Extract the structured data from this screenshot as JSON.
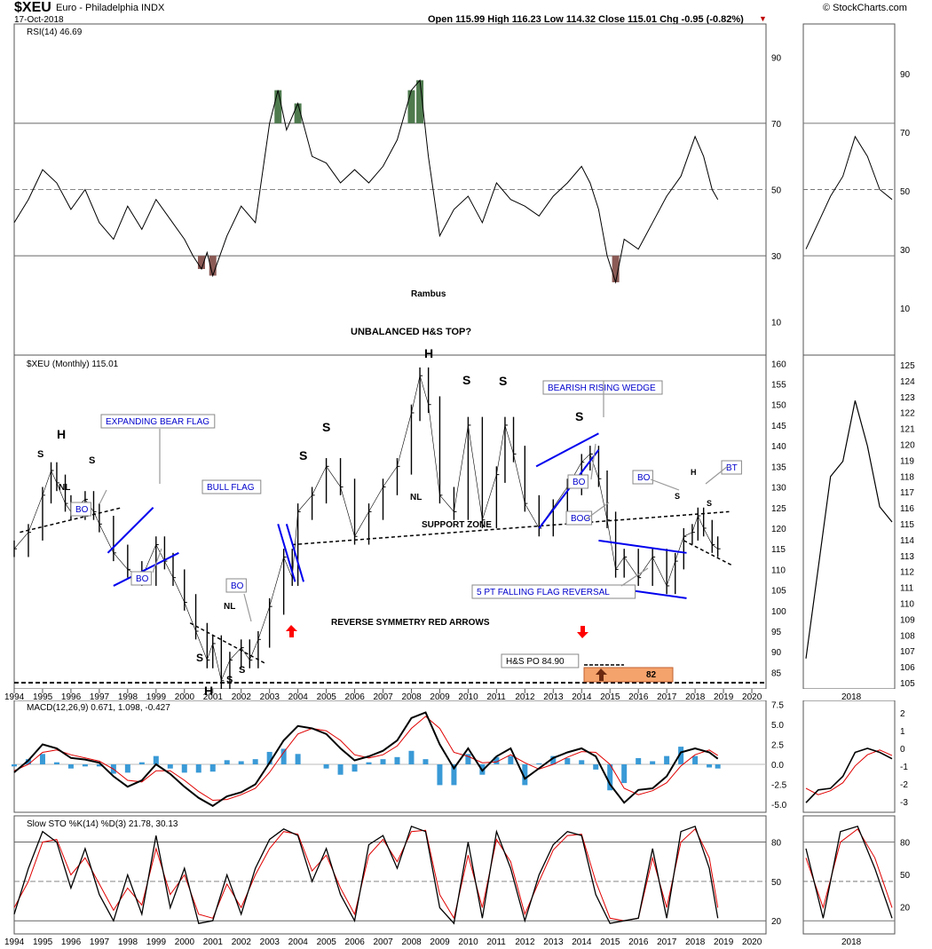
{
  "header": {
    "symbol": "$XEU",
    "name": "Euro - Philadelphia INDX",
    "date": "17-Oct-2018",
    "quote": "Open 115.99  High 116.23  Low 114.32  Close 115.01  Chg -0.95 (-0.82%)",
    "watermark": "© StockCharts.com"
  },
  "colors": {
    "price_bar": "#000000",
    "pattern_line": "#0000ee",
    "annotation_text": "#0000cc",
    "overbought_fill": "#4e7a4e",
    "oversold_fill": "#8b5a55",
    "macd_hist": "#3a9ad6",
    "signal_line": "#e00000",
    "arrow_red": "#ff0000",
    "po_box": "#f5a36c"
  },
  "chart_data": [
    {
      "type": "line",
      "panel": "RSI",
      "legend": "RSI(14) 46.69",
      "x_range": [
        1994,
        2020
      ],
      "ylim": [
        0,
        100
      ],
      "yticks": [
        10,
        30,
        50,
        70,
        90
      ],
      "reference_lines": [
        30,
        50,
        70
      ],
      "x": [
        1994.0,
        1994.5,
        1995.0,
        1995.5,
        1996.0,
        1996.5,
        1997.0,
        1997.5,
        1998.0,
        1998.5,
        1999.0,
        1999.5,
        2000.0,
        2000.3,
        2000.6,
        2000.8,
        2001.0,
        2001.5,
        2002.0,
        2002.5,
        2003.0,
        2003.3,
        2003.6,
        2004.0,
        2004.5,
        2005.0,
        2005.5,
        2006.0,
        2006.5,
        2007.0,
        2007.5,
        2008.0,
        2008.3,
        2008.6,
        2009.0,
        2009.5,
        2010.0,
        2010.5,
        2011.0,
        2011.5,
        2012.0,
        2012.5,
        2013.0,
        2013.5,
        2014.0,
        2014.3,
        2014.6,
        2014.9,
        2015.2,
        2015.5,
        2016.0,
        2016.5,
        2017.0,
        2017.5,
        2018.0,
        2018.3,
        2018.6,
        2018.8
      ],
      "values": [
        40,
        47,
        56,
        52,
        44,
        50,
        40,
        35,
        45,
        38,
        47,
        41,
        35,
        30,
        26,
        31,
        24,
        36,
        45,
        40,
        70,
        80,
        68,
        76,
        60,
        58,
        52,
        56,
        52,
        57,
        65,
        80,
        83,
        60,
        36,
        44,
        48,
        40,
        52,
        47,
        45,
        42,
        48,
        52,
        57,
        52,
        44,
        30,
        22,
        35,
        32,
        40,
        48,
        54,
        66,
        60,
        50,
        47
      ]
    },
    {
      "type": "line",
      "panel": "price",
      "legend": "$XEU (Monthly) 115.01",
      "x_range": [
        1994,
        2020
      ],
      "ylim": [
        81,
        162
      ],
      "yticks": [
        85,
        90,
        95,
        100,
        105,
        110,
        115,
        120,
        125,
        130,
        135,
        140,
        145,
        150,
        155,
        160
      ],
      "x": [
        1994.0,
        1994.5,
        1995.0,
        1995.3,
        1995.5,
        1995.8,
        1996.0,
        1996.5,
        1996.8,
        1997.0,
        1997.5,
        1998.0,
        1998.5,
        1999.0,
        1999.3,
        1999.6,
        2000.0,
        2000.4,
        2000.8,
        2001.0,
        2001.3,
        2001.6,
        2002.0,
        2002.3,
        2002.6,
        2003.0,
        2003.5,
        2003.8,
        2004.0,
        2004.5,
        2005.0,
        2005.5,
        2006.0,
        2006.5,
        2007.0,
        2007.5,
        2008.0,
        2008.3,
        2008.6,
        2009.0,
        2009.5,
        2010.0,
        2010.5,
        2011.0,
        2011.3,
        2011.6,
        2012.0,
        2012.5,
        2013.0,
        2013.5,
        2014.0,
        2014.3,
        2014.6,
        2014.9,
        2015.2,
        2015.5,
        2016.0,
        2016.5,
        2017.0,
        2017.3,
        2017.6,
        2017.9,
        2018.1,
        2018.3,
        2018.6,
        2018.8
      ],
      "values": [
        115,
        119,
        128,
        134,
        131,
        126,
        124,
        127,
        124,
        121,
        114,
        110,
        108,
        116,
        112,
        108,
        102,
        95,
        88,
        92,
        83,
        88,
        91,
        88,
        93,
        101,
        113,
        108,
        124,
        128,
        135,
        130,
        118,
        124,
        130,
        135,
        148,
        157,
        150,
        128,
        124,
        145,
        122,
        133,
        145,
        138,
        126,
        120,
        125,
        130,
        136,
        138,
        132,
        122,
        110,
        113,
        108,
        113,
        106,
        112,
        118,
        119,
        123,
        120,
        116,
        115
      ]
    },
    {
      "type": "line",
      "panel": "MACD",
      "legend": "MACD(12,26,9) 0.671, 1.098, -0.427",
      "x_range": [
        1994,
        2020
      ],
      "ylim": [
        -6,
        8
      ],
      "yticks": [
        -5.0,
        -2.5,
        0.0,
        2.5,
        5.0,
        7.5
      ],
      "x": [
        1994.0,
        1994.5,
        1995.0,
        1995.5,
        1996.0,
        1996.5,
        1997.0,
        1997.5,
        1998.0,
        1998.5,
        1999.0,
        1999.5,
        2000.0,
        2000.5,
        2001.0,
        2001.5,
        2002.0,
        2002.5,
        2003.0,
        2003.5,
        2004.0,
        2004.5,
        2005.0,
        2005.5,
        2006.0,
        2006.5,
        2007.0,
        2007.5,
        2008.0,
        2008.5,
        2009.0,
        2009.5,
        2010.0,
        2010.5,
        2011.0,
        2011.5,
        2012.0,
        2012.5,
        2013.0,
        2013.5,
        2014.0,
        2014.5,
        2015.0,
        2015.5,
        2016.0,
        2016.5,
        2017.0,
        2017.5,
        2018.0,
        2018.5,
        2018.8
      ],
      "series": [
        {
          "name": "MACD",
          "values": [
            -1.0,
            0.5,
            2.5,
            2.0,
            0.8,
            0.6,
            0.2,
            -1.5,
            -2.8,
            -2.0,
            0.0,
            -1.2,
            -2.8,
            -4.2,
            -5.2,
            -4.0,
            -3.5,
            -2.5,
            0.2,
            3.0,
            4.8,
            4.5,
            3.8,
            2.0,
            0.5,
            1.0,
            1.7,
            3.0,
            5.8,
            6.5,
            2.5,
            -0.5,
            2.0,
            -0.8,
            1.0,
            2.0,
            -1.8,
            -0.5,
            0.8,
            1.5,
            2.0,
            1.0,
            -2.5,
            -4.8,
            -3.2,
            -3.0,
            -1.5,
            1.5,
            2.0,
            1.5,
            0.7
          ]
        },
        {
          "name": "Signal",
          "values": [
            -0.8,
            0.0,
            1.5,
            1.8,
            1.2,
            0.8,
            0.4,
            -0.6,
            -2.0,
            -2.2,
            -0.8,
            -0.8,
            -2.0,
            -3.4,
            -4.5,
            -4.4,
            -3.8,
            -3.0,
            -1.0,
            1.5,
            3.8,
            4.5,
            4.2,
            3.0,
            1.2,
            0.8,
            1.2,
            2.3,
            4.5,
            6.0,
            4.5,
            1.5,
            1.0,
            0.2,
            0.3,
            1.2,
            0.2,
            -0.6,
            0.0,
            0.9,
            1.6,
            1.5,
            0.0,
            -3.0,
            -3.8,
            -3.3,
            -2.3,
            -0.2,
            1.2,
            1.8,
            1.1
          ]
        }
      ]
    },
    {
      "type": "line",
      "panel": "STO",
      "legend": "Slow STO %K(14) %D(3) 21.78, 30.13",
      "x_range": [
        1994,
        2020
      ],
      "ylim": [
        10,
        100
      ],
      "yticks": [
        20,
        50,
        80
      ],
      "reference_lines": [
        20,
        50,
        80
      ],
      "x": [
        1994.0,
        1994.5,
        1995.0,
        1995.5,
        1996.0,
        1996.5,
        1997.0,
        1997.5,
        1998.0,
        1998.5,
        1999.0,
        1999.5,
        2000.0,
        2000.5,
        2001.0,
        2001.5,
        2002.0,
        2002.5,
        2003.0,
        2003.5,
        2004.0,
        2004.5,
        2005.0,
        2005.5,
        2006.0,
        2006.5,
        2007.0,
        2007.5,
        2008.0,
        2008.5,
        2009.0,
        2009.5,
        2010.0,
        2010.5,
        2011.0,
        2011.5,
        2012.0,
        2012.5,
        2013.0,
        2013.5,
        2014.0,
        2014.5,
        2015.0,
        2015.5,
        2016.0,
        2016.5,
        2017.0,
        2017.5,
        2018.0,
        2018.5,
        2018.8
      ],
      "series": [
        {
          "name": "%K",
          "values": [
            25,
            60,
            88,
            80,
            45,
            75,
            40,
            20,
            55,
            25,
            85,
            30,
            60,
            18,
            20,
            55,
            25,
            60,
            82,
            90,
            85,
            50,
            75,
            40,
            20,
            78,
            85,
            60,
            92,
            88,
            30,
            18,
            80,
            22,
            88,
            60,
            20,
            55,
            78,
            88,
            85,
            40,
            18,
            20,
            22,
            75,
            22,
            88,
            92,
            60,
            22
          ]
        },
        {
          "name": "%D",
          "values": [
            30,
            50,
            80,
            82,
            55,
            68,
            48,
            28,
            45,
            32,
            75,
            40,
            55,
            25,
            22,
            48,
            30,
            55,
            75,
            88,
            86,
            58,
            70,
            45,
            25,
            70,
            82,
            65,
            88,
            89,
            40,
            22,
            70,
            30,
            82,
            65,
            25,
            50,
            74,
            85,
            86,
            50,
            22,
            20,
            22,
            68,
            30,
            80,
            90,
            68,
            30
          ]
        }
      ]
    }
  ],
  "side_panel": {
    "rsi_ticks": [
      "90",
      "70",
      "50",
      "30",
      "10"
    ],
    "price_ticks": [
      "125",
      "124",
      "123",
      "122",
      "121",
      "120",
      "119",
      "118",
      "117",
      "116",
      "115",
      "114",
      "113",
      "112",
      "111",
      "110",
      "109",
      "108",
      "107",
      "106",
      "105"
    ],
    "macd_ticks": [
      "2",
      "1",
      "0",
      "-1",
      "-2",
      "-3"
    ],
    "sto_ticks": [
      "80",
      "50",
      "20"
    ],
    "x_label": "2018"
  },
  "x_axis": {
    "labels": [
      "1994",
      "1995",
      "1996",
      "1997",
      "1998",
      "1999",
      "2000",
      "2001",
      "2002",
      "2003",
      "2004",
      "2005",
      "2006",
      "2007",
      "2008",
      "2009",
      "2010",
      "2011",
      "2012",
      "2013",
      "2014",
      "2015",
      "2016",
      "2017",
      "2018",
      "2019",
      "2020"
    ]
  },
  "annotations": {
    "rambus": "Rambus",
    "title_question": "UNBALANCED H&S TOP?",
    "support_zone": "SUPPORT ZONE",
    "reverse_symmetry": "REVERSE SYMMETRY RED ARROWS",
    "hs_po": "H&S PO 84.90",
    "po_value": "82",
    "expanding_bear_flag": "EXPANDING BEAR FLAG",
    "bull_flag": "BULL FLAG",
    "bearish_rising_wedge": "BEARISH RISING WEDGE",
    "falling_flag": "5 PT FALLING  FLAG  REVERSAL",
    "bo": "BO",
    "bog": "BOG",
    "bt": "BT",
    "letters": {
      "h": "H",
      "s": "S",
      "nl": "NL"
    }
  }
}
